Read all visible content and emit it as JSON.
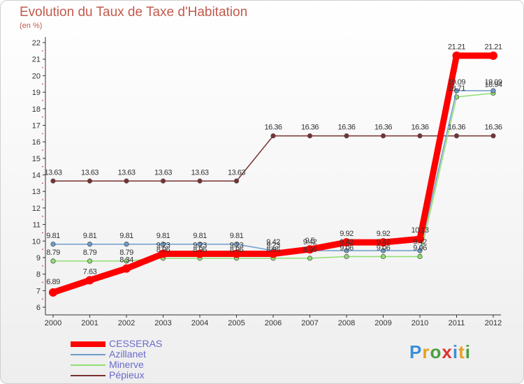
{
  "title": "Evolution du Taux de Taxe d'Habitation",
  "subtitle": "(en %)",
  "logo_letters": [
    {
      "ch": "P",
      "color": "#3b8fd8"
    },
    {
      "ch": "r",
      "color": "#e8a020"
    },
    {
      "ch": "o",
      "color": "#4aa03c"
    },
    {
      "ch": "x",
      "color": "#e03030"
    },
    {
      "ch": "i",
      "color": "#3b8fd8"
    },
    {
      "ch": "t",
      "color": "#e8a020"
    },
    {
      "ch": "i",
      "color": "#4aa03c"
    }
  ],
  "chart_data": {
    "type": "line",
    "title": "Evolution du Taux de Taxe d'Habitation",
    "ylabel": "(en %)",
    "xlabel": "",
    "ylim": [
      6,
      22
    ],
    "yticks": [
      6,
      7,
      8,
      9,
      10,
      11,
      12,
      13,
      14,
      15,
      16,
      17,
      18,
      19,
      20,
      21,
      22
    ],
    "grid": false,
    "legend_position": "bottom-left",
    "categories": [
      "2000",
      "2001",
      "2002",
      "2003",
      "2004",
      "2005",
      "2006",
      "2007",
      "2008",
      "2009",
      "2010",
      "2011",
      "2012"
    ],
    "series": [
      {
        "name": "CESSERAS",
        "color": "#ff0000",
        "values": [
          6.89,
          7.63,
          8.34,
          9.23,
          9.23,
          9.23,
          9.23,
          9.5,
          9.92,
          9.92,
          10.13,
          21.21,
          21.21
        ],
        "labels": [
          "6.89",
          "7.63",
          "8.34",
          "9.23",
          "9.23",
          "9.23",
          "9.23",
          "9.5",
          "9.92",
          "9.92",
          "10.13",
          "21.21",
          "21.21"
        ]
      },
      {
        "name": "Azillanet",
        "color": "#6c9ccc",
        "values": [
          9.81,
          9.81,
          9.81,
          9.81,
          9.81,
          9.81,
          9.42,
          9.42,
          9.42,
          9.42,
          9.42,
          19.09,
          19.09
        ],
        "labels": [
          "9.81",
          "9.81",
          "9.81",
          "9.81",
          "9.81",
          "9.81",
          "9.42",
          "9.42",
          "9.42",
          "9.42",
          "9.42",
          "19.09",
          "19.09"
        ]
      },
      {
        "name": "Minerve",
        "color": "#90e070",
        "values": [
          8.79,
          8.79,
          8.79,
          8.96,
          8.96,
          8.96,
          8.96,
          8.96,
          9.06,
          9.06,
          9.06,
          18.71,
          18.94
        ],
        "labels": [
          "8.79",
          "8.79",
          "8.79",
          "8.96",
          "8.96",
          "8.96",
          "8.96",
          "8.96",
          "9.06",
          "9.06",
          "9.06",
          "18.71",
          "18.94"
        ]
      },
      {
        "name": "Pépieux",
        "color": "#7a3030",
        "values": [
          13.63,
          13.63,
          13.63,
          13.63,
          13.63,
          13.63,
          16.36,
          16.36,
          16.36,
          16.36,
          16.36,
          16.36,
          16.36
        ],
        "labels": [
          "13.63",
          "13.63",
          "13.63",
          "13.63",
          "13.63",
          "13.63",
          "16.36",
          "16.36",
          "16.36",
          "16.36",
          "16.36",
          "16.36",
          "16.36"
        ]
      }
    ]
  }
}
